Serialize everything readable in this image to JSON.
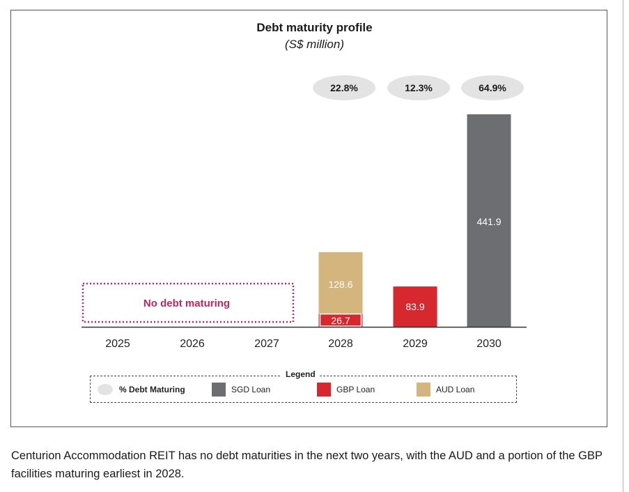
{
  "chart_data": {
    "type": "bar",
    "stacked": true,
    "title": "Debt maturity profile",
    "subtitle": "(S$ million)",
    "categories": [
      "2025",
      "2026",
      "2027",
      "2028",
      "2029",
      "2030"
    ],
    "series": [
      {
        "name": "SGD Loan",
        "color": "#6d6e71",
        "values": [
          0,
          0,
          0,
          0,
          0,
          441.9
        ]
      },
      {
        "name": "GBP Loan",
        "color": "#d7282f",
        "values": [
          0,
          0,
          0,
          26.7,
          83.9,
          0
        ]
      },
      {
        "name": "AUD Loan",
        "color": "#d3b57d",
        "values": [
          0,
          0,
          0,
          128.6,
          0,
          0
        ]
      }
    ],
    "data_labels": [
      "26.7",
      "128.6",
      "83.9",
      "441.9"
    ],
    "percent_debt_maturing": [
      {
        "category": "2028",
        "label": "22.8%"
      },
      {
        "category": "2029",
        "label": "12.3%"
      },
      {
        "category": "2030",
        "label": "64.9%"
      }
    ],
    "ylim": [
      0,
      441.9
    ],
    "grid": false,
    "annotation": "No debt maturing",
    "annotation_span": [
      "2025",
      "2027"
    ],
    "annotation_color": "#c8245a",
    "legend_position": "bottom"
  },
  "legend": {
    "title": "Legend",
    "items": [
      {
        "label": "% Debt Maturing",
        "kind": "oval",
        "color": "#e3e3e3"
      },
      {
        "label": "SGD Loan",
        "kind": "swatch",
        "color": "#6d6e71"
      },
      {
        "label": "GBP Loan",
        "kind": "swatch",
        "color": "#d7282f"
      },
      {
        "label": "AUD Loan",
        "kind": "swatch",
        "color": "#d3b57d"
      }
    ]
  },
  "caption": "Centurion Accommodation REIT has no debt maturities in the next two years, with the AUD and a portion of the GBP facilities maturing earliest in 2028."
}
